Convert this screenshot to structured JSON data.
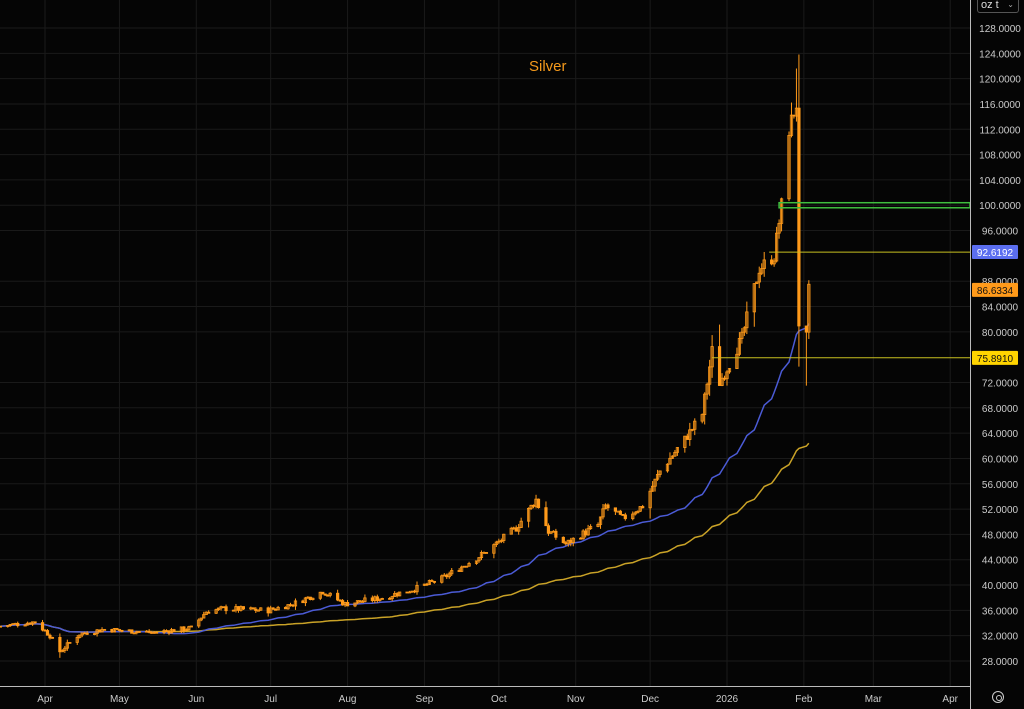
{
  "chart_data": {
    "type": "candlestick",
    "title": "Silver",
    "unit_selector": "oz t",
    "ylim": [
      24,
      132
    ],
    "y_ticks": [
      "128.0000",
      "124.0000",
      "120.0000",
      "116.0000",
      "112.0000",
      "108.0000",
      "104.0000",
      "100.0000",
      "96.0000",
      "88.0000",
      "84.0000",
      "80.0000",
      "72.0000",
      "68.0000",
      "64.0000",
      "60.0000",
      "56.0000",
      "52.0000",
      "48.0000",
      "44.0000",
      "40.0000",
      "36.0000",
      "32.0000",
      "28.0000"
    ],
    "x_ticks": [
      {
        "label": "Apr",
        "date": "2025-04-01"
      },
      {
        "label": "May",
        "date": "2025-05-01"
      },
      {
        "label": "Jun",
        "date": "2025-06-01"
      },
      {
        "label": "Jul",
        "date": "2025-07-01"
      },
      {
        "label": "Aug",
        "date": "2025-08-01"
      },
      {
        "label": "Sep",
        "date": "2025-09-01"
      },
      {
        "label": "Oct",
        "date": "2025-10-01"
      },
      {
        "label": "Nov",
        "date": "2025-11-01"
      },
      {
        "label": "Dec",
        "date": "2025-12-01"
      },
      {
        "label": "2026",
        "date": "2026-01-01"
      },
      {
        "label": "Feb",
        "date": "2026-02-01"
      },
      {
        "label": "Mar",
        "date": "2026-03-01"
      },
      {
        "label": "Apr",
        "date": "2026-04-01"
      }
    ],
    "price_path": [
      [
        "2025-03-14",
        33.5
      ],
      [
        "2025-03-28",
        34.2
      ],
      [
        "2025-04-03",
        32
      ],
      [
        "2025-04-07",
        29.5
      ],
      [
        "2025-04-15",
        32.3
      ],
      [
        "2025-04-25",
        33
      ],
      [
        "2025-05-15",
        32.5
      ],
      [
        "2025-05-30",
        33.2
      ],
      [
        "2025-06-05",
        35.8
      ],
      [
        "2025-06-12",
        36.3
      ],
      [
        "2025-06-30",
        36
      ],
      [
        "2025-07-10",
        37
      ],
      [
        "2025-07-22",
        39
      ],
      [
        "2025-07-31",
        37
      ],
      [
        "2025-08-15",
        38
      ],
      [
        "2025-08-29",
        39.5
      ],
      [
        "2025-09-08",
        41
      ],
      [
        "2025-09-25",
        45
      ],
      [
        "2025-10-08",
        49
      ],
      [
        "2025-10-16",
        53.5
      ],
      [
        "2025-10-21",
        48.5
      ],
      [
        "2025-10-28",
        46.5
      ],
      [
        "2025-11-10",
        49.5
      ],
      [
        "2025-11-13",
        52.5
      ],
      [
        "2025-11-20",
        50.5
      ],
      [
        "2025-11-28",
        52.5
      ],
      [
        "2025-12-05",
        58
      ],
      [
        "2025-12-15",
        63
      ],
      [
        "2025-12-22",
        67
      ],
      [
        "2025-12-26",
        77
      ],
      [
        "2025-12-29",
        72
      ],
      [
        "2026-01-02",
        75
      ],
      [
        "2026-01-07",
        79
      ],
      [
        "2026-01-14",
        90
      ],
      [
        "2026-01-20",
        92
      ],
      [
        "2026-01-23",
        100
      ],
      [
        "2026-01-26",
        112
      ],
      [
        "2026-01-29",
        116
      ],
      [
        "2026-01-30",
        80
      ],
      [
        "2026-02-02",
        79
      ],
      [
        "2026-02-03",
        86.6334
      ]
    ],
    "extremes": {
      "high": 121.6,
      "low": 71.5
    },
    "moving_averages": [
      {
        "name": "MA fast",
        "color": "#4b5bd6",
        "last": "92.6192"
      },
      {
        "name": "MA slow",
        "color": "#c9a227",
        "last": "75.8910"
      }
    ],
    "last_price": "86.6334",
    "levels": [
      {
        "name": "resistance-zone",
        "low": 99.6,
        "high": 100.4,
        "from": "2026-01-22",
        "color": "#3fbf3f"
      },
      {
        "name": "level-92",
        "value": 92.6,
        "from": "2026-01-18",
        "color": "#c8c020"
      },
      {
        "name": "level-76",
        "value": 75.9,
        "from": "2025-12-26",
        "color": "#c8c020"
      }
    ],
    "candle_color": "#ff9a1a"
  }
}
